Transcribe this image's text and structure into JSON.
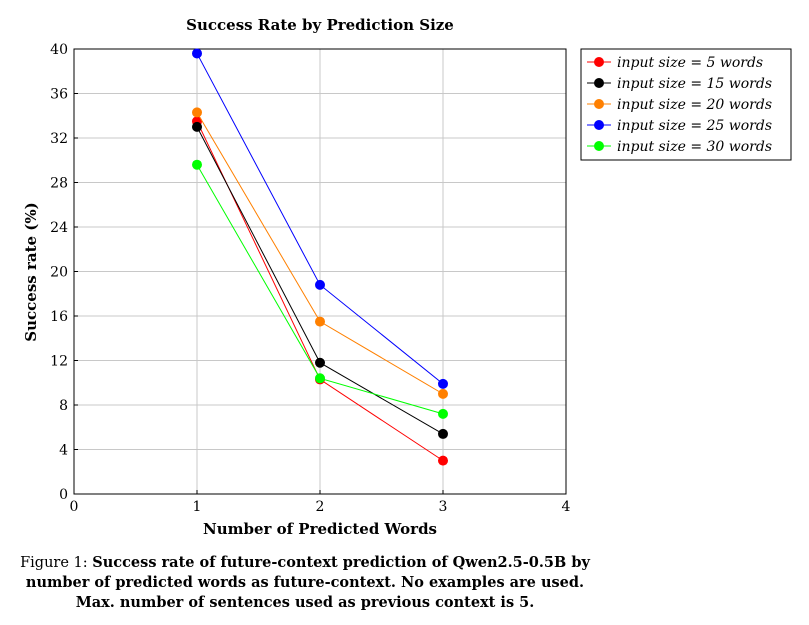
{
  "chart_data": {
    "type": "line",
    "title": "Success Rate by Prediction Size",
    "xlabel": "Number of Predicted Words",
    "ylabel": "Success rate (%)",
    "xlim": [
      0,
      4
    ],
    "ylim": [
      0,
      40
    ],
    "xticks": [
      "0",
      "1",
      "2",
      "3",
      "4"
    ],
    "yticks": [
      "0",
      "4",
      "8",
      "12",
      "16",
      "20",
      "24",
      "28",
      "32",
      "36",
      "40"
    ],
    "grid": true,
    "legend_position": "outside-top-right",
    "x": [
      1,
      2,
      3
    ],
    "series": [
      {
        "name": "input size = 5 words",
        "color": "#ff0000",
        "values": [
          33.5,
          10.3,
          3.0
        ]
      },
      {
        "name": "input size = 15 words",
        "color": "#000000",
        "values": [
          33.0,
          11.8,
          5.4
        ]
      },
      {
        "name": "input size = 20 words",
        "color": "#ff8000",
        "values": [
          34.3,
          15.5,
          9.0
        ]
      },
      {
        "name": "input size = 25 words",
        "color": "#0000ff",
        "values": [
          39.6,
          18.8,
          9.9
        ]
      },
      {
        "name": "input size = 30 words",
        "color": "#00ff00",
        "values": [
          29.6,
          10.4,
          7.2
        ]
      }
    ]
  },
  "caption": {
    "lead": "Figure 1: ",
    "body": "Success rate of future-context prediction of Qwen2.5-0.5B by number of predicted words as future-context. No examples are used. Max. number of sentences used as previous context is 5."
  }
}
